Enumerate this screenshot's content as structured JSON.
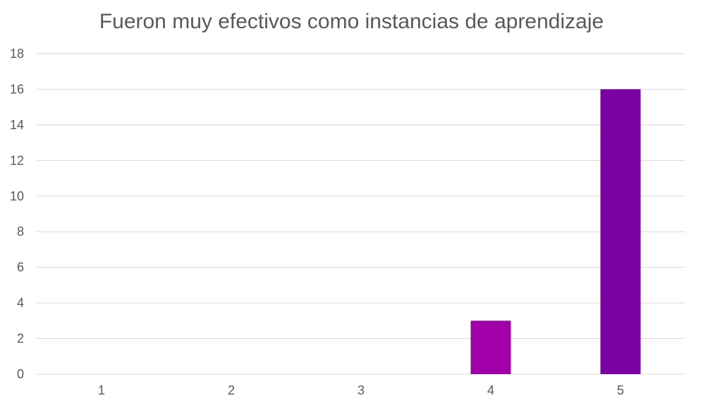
{
  "chart_data": {
    "type": "bar",
    "title": "Fueron muy efectivos como instancias de aprendizaje",
    "categories": [
      "1",
      "2",
      "3",
      "4",
      "5"
    ],
    "values": [
      0,
      0,
      0,
      3,
      16
    ],
    "bar_colors": [
      "#7b00a3",
      "#7b00a3",
      "#7b00a3",
      "#a100a9",
      "#7b00a3"
    ],
    "xlabel": "",
    "ylabel": "",
    "ylim": [
      0,
      18
    ],
    "yticks": [
      0,
      2,
      4,
      6,
      8,
      10,
      12,
      14,
      16,
      18
    ],
    "grid": true,
    "legend": "none"
  }
}
